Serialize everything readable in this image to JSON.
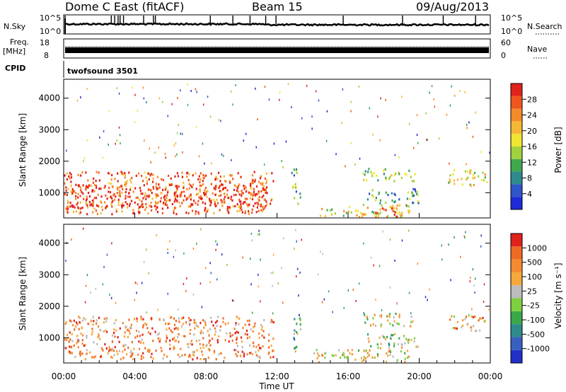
{
  "header": {
    "station": "Dome C East (fitACF)",
    "beam": "Beam 15",
    "date": "09/Aug/2013"
  },
  "top_panels": {
    "nsky_label": "N.Sky",
    "nsky_top": "10^5",
    "nsky_bottom": "10^0",
    "nsearch_label": "N.Search",
    "nsearch_top": "10^5",
    "nsearch_bottom": "10^0",
    "freq_label": "Freq.",
    "freq_unit": "[MHz]",
    "freq_top": "18",
    "freq_bottom": "8",
    "nave_label": "Nave",
    "nave_top": "60",
    "nave_bottom": "0",
    "cpid_label": "CPID",
    "cpid_value": "twofsound 3501"
  },
  "chart_data": [
    {
      "type": "heatmap",
      "panel": "power",
      "xlabel": "",
      "ylabel": "Slant Range [km]",
      "x_range_hours": [
        0,
        24
      ],
      "y_range_km": [
        200,
        4600
      ],
      "y_ticks": [
        "1000",
        "2000",
        "3000",
        "4000"
      ],
      "colorbar_label": "Power [dB]",
      "colorbar_ticks": [
        "4",
        "8",
        "12",
        "16",
        "20",
        "24",
        "28"
      ],
      "colorbar_colors": [
        "#1d2bd8",
        "#2f55c8",
        "#2e8a8e",
        "#3fa84c",
        "#9fd23c",
        "#f0e632",
        "#f5b834",
        "#f58a28",
        "#f0551e",
        "#e0221c"
      ],
      "regions": [
        {
          "t0": 0.0,
          "t1": 11.8,
          "r0": 350,
          "r1": 1700,
          "level": 0.82
        },
        {
          "t0": 0.3,
          "t1": 11.5,
          "r0": 550,
          "r1": 1300,
          "level": 0.95
        },
        {
          "t0": 12.8,
          "t1": 13.3,
          "r0": 600,
          "r1": 1800,
          "level": 0.35
        },
        {
          "t0": 14.0,
          "t1": 19.5,
          "r0": 250,
          "r1": 650,
          "level": 0.55
        },
        {
          "t0": 17.5,
          "t1": 18.8,
          "r0": 250,
          "r1": 550,
          "level": 0.9
        },
        {
          "t0": 17.0,
          "t1": 20.0,
          "r0": 700,
          "r1": 1150,
          "level": 0.3
        },
        {
          "t0": 16.8,
          "t1": 19.8,
          "r0": 1400,
          "r1": 1800,
          "level": 0.45
        },
        {
          "t0": 21.5,
          "t1": 23.8,
          "r0": 1250,
          "r1": 1750,
          "level": 0.55
        }
      ]
    },
    {
      "type": "heatmap",
      "panel": "velocity",
      "xlabel": "Time UT",
      "ylabel": "Slant Range [km]",
      "x_range_hours": [
        0,
        24
      ],
      "x_ticks": [
        "00:00",
        "04:00",
        "08:00",
        "12:00",
        "16:00",
        "20:00",
        "00:00"
      ],
      "y_range_km": [
        200,
        4600
      ],
      "y_ticks": [
        "1000",
        "2000",
        "3000",
        "4000"
      ],
      "colorbar_label": "Velocity [m s⁻¹]",
      "colorbar_ticks": [
        "1000",
        "500",
        "100",
        "25",
        "-25",
        "-100",
        "-500",
        "-1000"
      ],
      "colorbar_colors": [
        "#2030c8",
        "#3860c0",
        "#2f8a8a",
        "#3aa84a",
        "#7fd040",
        "#bcbcbc",
        "#f5a83c",
        "#f58a30",
        "#f06a24",
        "#e0221c"
      ],
      "regions": [
        {
          "t0": 0.0,
          "t1": 11.8,
          "r0": 350,
          "r1": 1700,
          "level": 0.75
        },
        {
          "t0": 12.8,
          "t1": 13.3,
          "r0": 600,
          "r1": 1800,
          "level": 0.4
        },
        {
          "t0": 14.0,
          "t1": 19.5,
          "r0": 250,
          "r1": 650,
          "level": 0.6
        },
        {
          "t0": 17.0,
          "t1": 20.0,
          "r0": 700,
          "r1": 1150,
          "level": 0.5
        },
        {
          "t0": 16.8,
          "t1": 19.8,
          "r0": 1400,
          "r1": 1800,
          "level": 0.55
        },
        {
          "t0": 21.5,
          "t1": 23.8,
          "r0": 1250,
          "r1": 1750,
          "level": 0.7
        }
      ]
    }
  ]
}
